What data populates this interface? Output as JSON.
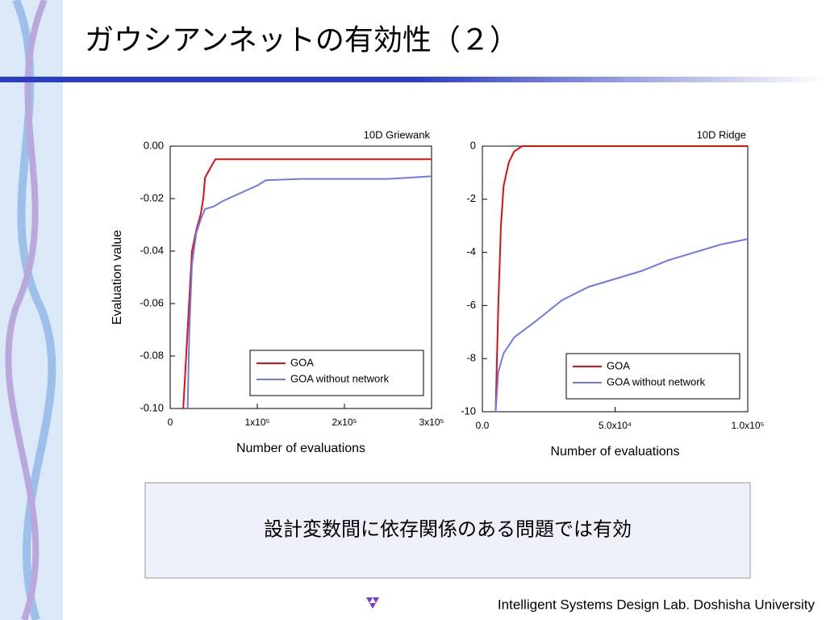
{
  "slide_title": "ガウシアンネットの有効性（２）",
  "message": "設計変数間に依存関係のある問題では有効",
  "footer": "Intelligent Systems Design Lab. Doshisha University",
  "chart_data": [
    {
      "type": "line",
      "title": "10D Griewank",
      "x_label": "Number of evaluations",
      "y_label": "Evaluation value",
      "xlim": [
        0,
        300000
      ],
      "ylim": [
        -0.1,
        0
      ],
      "xticks": [
        0,
        {
          "value": 100000,
          "label": "1x10⁵"
        },
        {
          "value": 200000,
          "label": "2x10⁵"
        },
        {
          "value": 300000,
          "label": "3x10⁵"
        }
      ],
      "yticks": [
        {
          "value": 0,
          "label": "0.00"
        },
        -0.02,
        -0.04,
        -0.06,
        -0.08,
        {
          "value": -0.1,
          "label": "-0.10"
        }
      ],
      "legend": "lower right",
      "series": [
        {
          "name": "GOA",
          "color": "#e01010",
          "x": [
            15000,
            20000,
            25000,
            30000,
            35000,
            38000,
            40000,
            45000,
            50000,
            52000,
            300000
          ],
          "values": [
            -0.1,
            -0.07,
            -0.04,
            -0.032,
            -0.026,
            -0.02,
            -0.012,
            -0.009,
            -0.006,
            -0.005,
            -0.005
          ]
        },
        {
          "name": "GOA without network",
          "color": "#6f78e8",
          "x": [
            20000,
            22000,
            25000,
            30000,
            35000,
            40000,
            50000,
            60000,
            80000,
            100000,
            110000,
            150000,
            250000,
            300000
          ],
          "values": [
            -0.1,
            -0.07,
            -0.045,
            -0.033,
            -0.028,
            -0.024,
            -0.023,
            -0.021,
            -0.018,
            -0.015,
            -0.013,
            -0.0125,
            -0.0125,
            -0.0115
          ]
        }
      ]
    },
    {
      "type": "line",
      "title": "10D Ridge",
      "x_label": "Number of evaluations",
      "xlim": [
        0,
        100000
      ],
      "ylim": [
        -10,
        0
      ],
      "xticks": [
        {
          "value": 0,
          "label": "0.0"
        },
        {
          "value": 50000,
          "label": "5.0x10⁴"
        },
        {
          "value": 100000,
          "label": "1.0x10⁵"
        }
      ],
      "yticks": [
        0,
        -2,
        -4,
        -6,
        -8,
        -10
      ],
      "legend": "lower right",
      "series": [
        {
          "name": "GOA",
          "color": "#e01010",
          "x": [
            5000,
            6000,
            7000,
            8000,
            10000,
            12000,
            15000,
            100000
          ],
          "values": [
            -10,
            -6,
            -3,
            -1.5,
            -0.6,
            -0.2,
            0,
            0
          ]
        },
        {
          "name": "GOA without network",
          "color": "#6f78e8",
          "x": [
            5000,
            6000,
            8000,
            12000,
            20000,
            30000,
            40000,
            50000,
            60000,
            70000,
            80000,
            90000,
            100000
          ],
          "values": [
            -10,
            -8.5,
            -7.8,
            -7.2,
            -6.6,
            -5.8,
            -5.3,
            -5.0,
            -4.7,
            -4.3,
            -4.0,
            -3.7,
            -3.5
          ]
        }
      ]
    }
  ]
}
